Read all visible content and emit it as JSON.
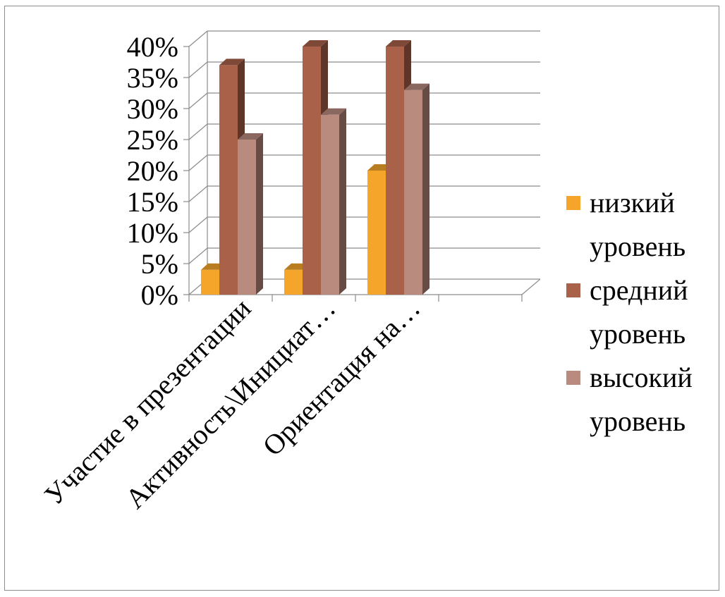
{
  "chart_data": {
    "type": "bar",
    "title": "",
    "xlabel": "",
    "ylabel": "",
    "ylim": [
      0,
      40
    ],
    "yticks": [
      "0%",
      "5%",
      "10%",
      "15%",
      "20%",
      "25%",
      "30%",
      "35%",
      "40%"
    ],
    "categories": [
      "Участие в презентации",
      "Активность\\Инициат…",
      "Ориентация на…",
      ""
    ],
    "series": [
      {
        "name": "низкий уровень",
        "color": "#F5A62A",
        "values": [
          4,
          4,
          20,
          null
        ]
      },
      {
        "name": "средний уровень",
        "color": "#A9614A",
        "values": [
          37,
          40,
          40,
          null
        ]
      },
      {
        "name": "высокий уровень",
        "color": "#B98A7E",
        "values": [
          25,
          29,
          33,
          null
        ]
      }
    ],
    "grid": true,
    "legend_position": "right",
    "projection": "3d"
  }
}
